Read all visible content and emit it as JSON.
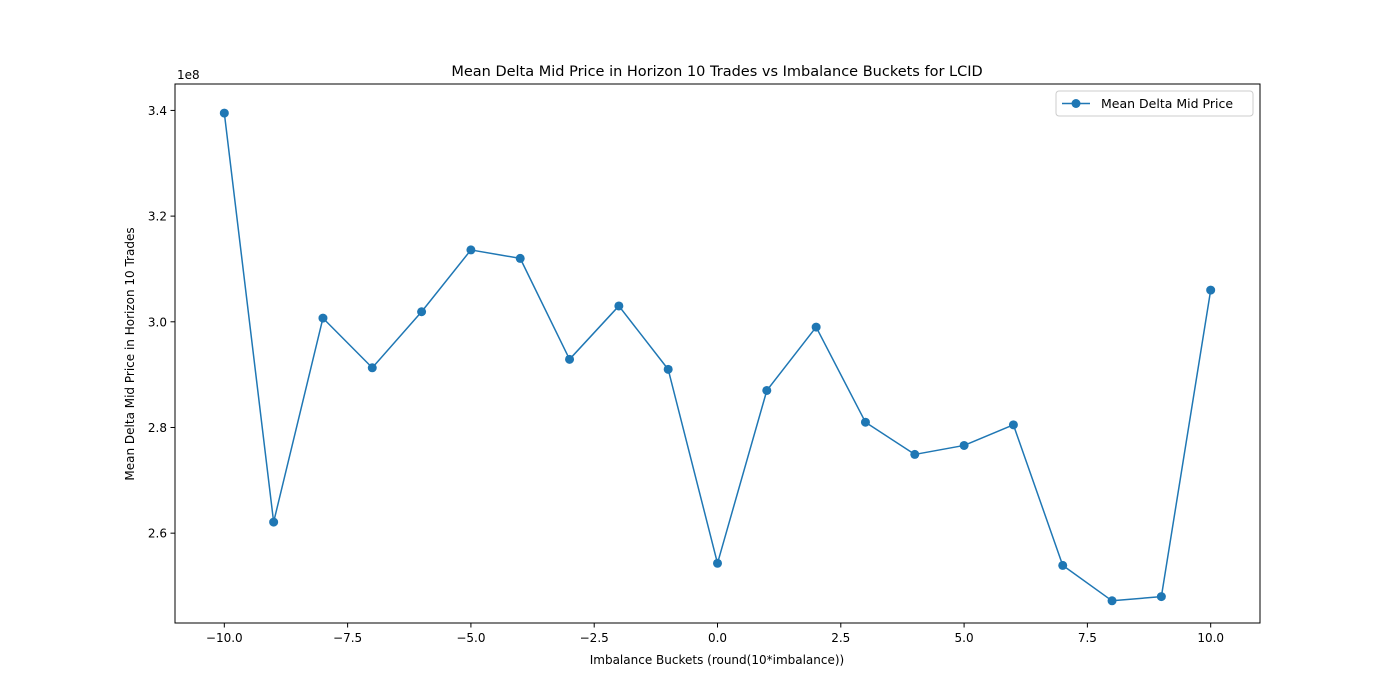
{
  "chart_data": {
    "type": "line",
    "title": "Mean Delta Mid Price in Horizon 10 Trades vs Imbalance Buckets for LCID",
    "xlabel": "Imbalance Buckets (round(10*imbalance))",
    "ylabel": "Mean Delta Mid Price in Horizon 10 Trades",
    "y_offset_label": "1e8",
    "y_scale": 100000000,
    "xlim": [
      -11.0,
      11.0
    ],
    "ylim": [
      2.43,
      3.45
    ],
    "x_ticks": [
      -10.0,
      -7.5,
      -5.0,
      -2.5,
      0.0,
      2.5,
      5.0,
      7.5,
      10.0
    ],
    "x_tick_labels": [
      "−10.0",
      "−7.5",
      "−5.0",
      "−2.5",
      "0.0",
      "2.5",
      "5.0",
      "7.5",
      "10.0"
    ],
    "y_ticks": [
      2.6,
      2.8,
      3.0,
      3.2,
      3.4
    ],
    "y_tick_labels": [
      "2.6",
      "2.8",
      "3.0",
      "3.2",
      "3.4"
    ],
    "grid": false,
    "legend_position": "top-right",
    "x": [
      -10,
      -9,
      -8,
      -7,
      -6,
      -5,
      -4,
      -3,
      -2,
      -1,
      0,
      1,
      2,
      3,
      4,
      5,
      6,
      7,
      8,
      9,
      10
    ],
    "series": [
      {
        "name": "Mean Delta Mid Price",
        "color": "#1f77b4",
        "marker": "circle",
        "values": [
          3.395,
          2.621,
          3.007,
          2.913,
          3.019,
          3.136,
          3.12,
          2.929,
          3.03,
          2.91,
          2.543,
          2.87,
          2.99,
          2.81,
          2.749,
          2.766,
          2.805,
          2.539,
          2.472,
          2.48,
          3.06
        ]
      }
    ]
  }
}
